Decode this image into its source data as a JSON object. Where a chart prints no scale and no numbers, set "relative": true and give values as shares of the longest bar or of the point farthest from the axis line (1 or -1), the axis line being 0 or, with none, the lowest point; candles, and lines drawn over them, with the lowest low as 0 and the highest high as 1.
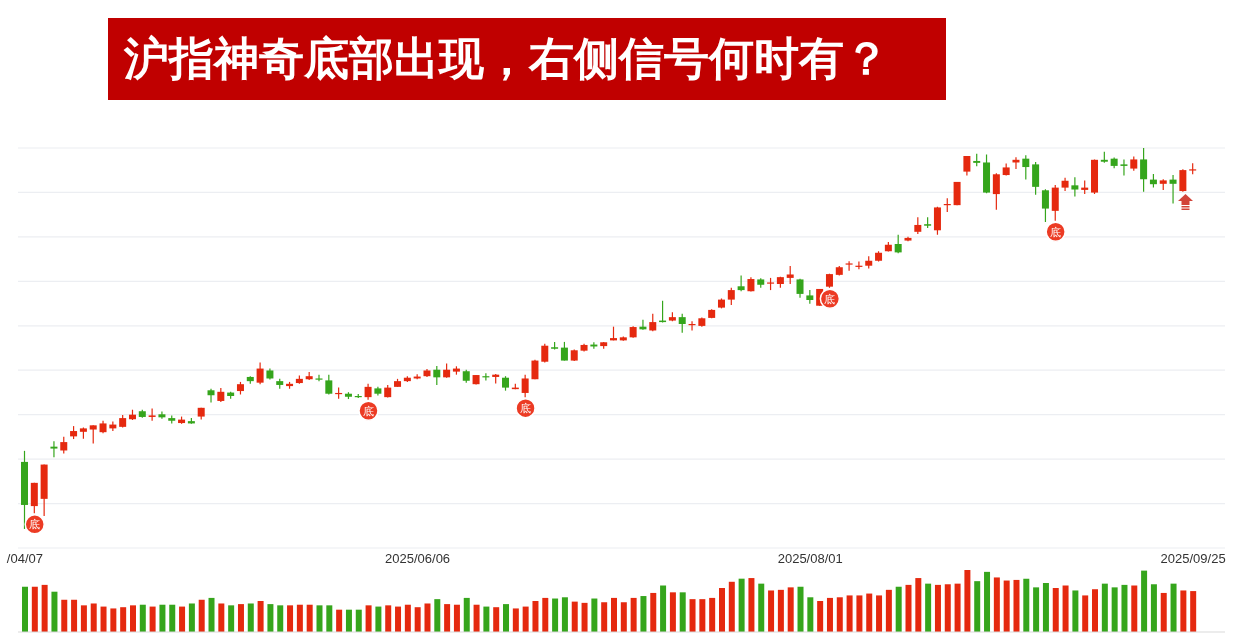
{
  "chart_data": [
    {
      "type": "candlestick",
      "title": "沪指神奇底部出现，右侧信号何时有？",
      "categories": [
        "/04/07",
        null,
        null,
        null,
        null,
        null,
        null,
        null,
        null,
        null,
        null,
        null,
        null,
        null,
        null,
        null,
        null,
        null,
        null,
        null,
        null,
        null,
        null,
        null,
        null,
        null,
        null,
        null,
        null,
        null,
        null,
        null,
        null,
        null,
        null,
        null,
        null,
        null,
        null,
        null,
        "2025/06/06",
        null,
        null,
        null,
        null,
        null,
        null,
        null,
        null,
        null,
        null,
        null,
        null,
        null,
        null,
        null,
        null,
        null,
        null,
        null,
        null,
        null,
        null,
        null,
        null,
        null,
        null,
        null,
        null,
        null,
        null,
        null,
        null,
        null,
        null,
        null,
        null,
        null,
        null,
        null,
        "2025/08/01",
        null,
        null,
        null,
        null,
        null,
        null,
        null,
        null,
        null,
        null,
        null,
        null,
        null,
        null,
        null,
        null,
        null,
        null,
        null,
        null,
        null,
        null,
        null,
        null,
        null,
        null,
        null,
        null,
        null,
        null,
        null,
        null,
        null,
        null,
        null,
        null,
        null,
        null,
        "2025/09/25"
      ],
      "ohlc": [
        [
          0.176,
          0.205,
          0,
          0.063
        ],
        [
          0.06,
          0.121,
          0.041,
          0.121
        ],
        [
          0.079,
          0.169,
          0.034,
          0.169
        ],
        [
          0.216,
          0.23,
          0.188,
          0.211
        ],
        [
          0.206,
          0.242,
          0.198,
          0.228
        ],
        [
          0.243,
          0.27,
          0.236,
          0.257
        ],
        [
          0.255,
          0.266,
          0.237,
          0.264
        ],
        [
          0.261,
          0.272,
          0.224,
          0.272
        ],
        [
          0.254,
          0.284,
          0.251,
          0.277
        ],
        [
          0.264,
          0.282,
          0.257,
          0.274
        ],
        [
          0.268,
          0.299,
          0.266,
          0.291
        ],
        [
          0.288,
          0.313,
          0.286,
          0.3
        ],
        [
          0.309,
          0.313,
          0.292,
          0.294
        ],
        [
          0.294,
          0.316,
          0.284,
          0.298
        ],
        [
          0.301,
          0.308,
          0.289,
          0.293
        ],
        [
          0.291,
          0.298,
          0.277,
          0.284
        ],
        [
          0.278,
          0.295,
          0.276,
          0.287
        ],
        [
          0.283,
          0.291,
          0.276,
          0.277
        ],
        [
          0.295,
          0.318,
          0.287,
          0.318
        ],
        [
          0.364,
          0.368,
          0.332,
          0.351
        ],
        [
          0.336,
          0.37,
          0.333,
          0.36
        ],
        [
          0.358,
          0.36,
          0.342,
          0.349
        ],
        [
          0.362,
          0.386,
          0.353,
          0.38
        ],
        [
          0.399,
          0.401,
          0.381,
          0.388
        ],
        [
          0.384,
          0.437,
          0.38,
          0.421
        ],
        [
          0.416,
          0.421,
          0.392,
          0.395
        ],
        [
          0.388,
          0.394,
          0.368,
          0.378
        ],
        [
          0.375,
          0.386,
          0.368,
          0.381
        ],
        [
          0.383,
          0.403,
          0.381,
          0.394
        ],
        [
          0.393,
          0.412,
          0.391,
          0.401
        ],
        [
          0.395,
          0.405,
          0.388,
          0.392
        ],
        [
          0.39,
          0.405,
          0.353,
          0.355
        ],
        [
          0.354,
          0.371,
          0.342,
          0.357
        ],
        [
          0.355,
          0.359,
          0.341,
          0.347
        ],
        [
          0.349,
          0.354,
          0.344,
          0.346
        ],
        [
          0.346,
          0.381,
          0.339,
          0.373
        ],
        [
          0.369,
          0.373,
          0.35,
          0.355
        ],
        [
          0.346,
          0.378,
          0.345,
          0.371
        ],
        [
          0.373,
          0.394,
          0.373,
          0.388
        ],
        [
          0.388,
          0.401,
          0.386,
          0.397
        ],
        [
          0.395,
          0.406,
          0.393,
          0.4
        ],
        [
          0.401,
          0.42,
          0.399,
          0.416
        ],
        [
          0.418,
          0.428,
          0.378,
          0.398
        ],
        [
          0.398,
          0.434,
          0.397,
          0.418
        ],
        [
          0.413,
          0.427,
          0.405,
          0.421
        ],
        [
          0.414,
          0.418,
          0.384,
          0.389
        ],
        [
          0.38,
          0.404,
          0.379,
          0.404
        ],
        [
          0.401,
          0.409,
          0.39,
          0.399
        ],
        [
          0.399,
          0.407,
          0.382,
          0.405
        ],
        [
          0.397,
          0.401,
          0.363,
          0.371
        ],
        [
          0.367,
          0.381,
          0.367,
          0.371
        ],
        [
          0.357,
          0.405,
          0.346,
          0.395
        ],
        [
          0.393,
          0.444,
          0.393,
          0.442
        ],
        [
          0.439,
          0.486,
          0.437,
          0.481
        ],
        [
          0.477,
          0.491,
          0.471,
          0.473
        ],
        [
          0.476,
          0.491,
          0.442,
          0.442
        ],
        [
          0.442,
          0.471,
          0.441,
          0.469
        ],
        [
          0.468,
          0.486,
          0.466,
          0.483
        ],
        [
          0.484,
          0.49,
          0.473,
          0.479
        ],
        [
          0.48,
          0.491,
          0.473,
          0.49
        ],
        [
          0.495,
          0.531,
          0.495,
          0.501
        ],
        [
          0.495,
          0.505,
          0.494,
          0.503
        ],
        [
          0.503,
          0.532,
          0.502,
          0.53
        ],
        [
          0.531,
          0.549,
          0.523,
          0.524
        ],
        [
          0.521,
          0.565,
          0.519,
          0.543
        ],
        [
          0.547,
          0.599,
          0.542,
          0.543
        ],
        [
          0.547,
          0.569,
          0.545,
          0.556
        ],
        [
          0.556,
          0.565,
          0.515,
          0.538
        ],
        [
          0.536,
          0.545,
          0.521,
          0.538
        ],
        [
          0.533,
          0.555,
          0.531,
          0.553
        ],
        [
          0.554,
          0.577,
          0.553,
          0.575
        ],
        [
          0.581,
          0.605,
          0.579,
          0.602
        ],
        [
          0.602,
          0.633,
          0.588,
          0.627
        ],
        [
          0.637,
          0.665,
          0.624,
          0.627
        ],
        [
          0.624,
          0.661,
          0.623,
          0.656
        ],
        [
          0.655,
          0.658,
          0.633,
          0.641
        ],
        [
          0.644,
          0.659,
          0.627,
          0.647
        ],
        [
          0.643,
          0.662,
          0.633,
          0.661
        ],
        [
          0.659,
          0.69,
          0.643,
          0.668
        ],
        [
          0.655,
          0.657,
          0.607,
          0.617
        ],
        [
          0.613,
          0.627,
          0.591,
          0.601
        ],
        [
          0.586,
          0.63,
          0.586,
          0.63
        ],
        [
          0.636,
          0.67,
          0.633,
          0.669
        ],
        [
          0.667,
          0.69,
          0.665,
          0.687
        ],
        [
          0.694,
          0.703,
          0.678,
          0.697
        ],
        [
          0.688,
          0.702,
          0.682,
          0.691
        ],
        [
          0.691,
          0.716,
          0.684,
          0.704
        ],
        [
          0.704,
          0.729,
          0.702,
          0.725
        ],
        [
          0.729,
          0.753,
          0.728,
          0.746
        ],
        [
          0.748,
          0.772,
          0.724,
          0.726
        ],
        [
          0.757,
          0.767,
          0.755,
          0.764
        ],
        [
          0.78,
          0.818,
          0.774,
          0.798
        ],
        [
          0.8,
          0.818,
          0.79,
          0.796
        ],
        [
          0.784,
          0.846,
          0.772,
          0.844
        ],
        [
          0.85,
          0.868,
          0.832,
          0.853
        ],
        [
          0.85,
          0.911,
          0.85,
          0.911
        ],
        [
          0.938,
          0.979,
          0.928,
          0.979
        ],
        [
          0.966,
          0.985,
          0.952,
          0.961
        ],
        [
          0.962,
          0.983,
          0.881,
          0.883
        ],
        [
          0.879,
          0.934,
          0.838,
          0.931
        ],
        [
          0.929,
          0.959,
          0.928,
          0.949
        ],
        [
          0.962,
          0.976,
          0.945,
          0.969
        ],
        [
          0.972,
          0.981,
          0.917,
          0.95
        ],
        [
          0.957,
          0.963,
          0.877,
          0.898
        ],
        [
          0.889,
          0.892,
          0.806,
          0.841
        ],
        [
          0.835,
          0.903,
          0.809,
          0.896
        ],
        [
          0.896,
          0.922,
          0.887,
          0.914
        ],
        [
          0.902,
          0.923,
          0.873,
          0.891
        ],
        [
          0.89,
          0.915,
          0.879,
          0.896
        ],
        [
          0.883,
          0.97,
          0.879,
          0.969
        ],
        [
          0.969,
          0.99,
          0.961,
          0.964
        ],
        [
          0.972,
          0.975,
          0.947,
          0.953
        ],
        [
          0.957,
          0.97,
          0.928,
          0.953
        ],
        [
          0.946,
          0.978,
          0.94,
          0.97
        ],
        [
          0.97,
          1,
          0.885,
          0.918
        ],
        [
          0.917,
          0.932,
          0.896,
          0.905
        ],
        [
          0.906,
          0.918,
          0.89,
          0.915
        ],
        [
          0.917,
          0.929,
          0.854,
          0.906
        ],
        [
          0.887,
          0.944,
          0.885,
          0.942
        ],
        [
          0.942,
          0.96,
          0.931,
          0.944
        ]
      ],
      "colors": [
        "#35a51c",
        "#e5290f",
        "#e5290f",
        "#35a51c",
        "#e5290f",
        "#e5290f",
        "#e5290f",
        "#e5290f",
        "#e5290f",
        "#e5290f",
        "#e5290f",
        "#e5290f",
        "#35a51c",
        "#e5290f",
        "#35a51c",
        "#35a51c",
        "#e5290f",
        "#35a51c",
        "#e5290f",
        "#35a51c",
        "#e5290f",
        "#35a51c",
        "#e5290f",
        "#35a51c",
        "#e5290f",
        "#35a51c",
        "#35a51c",
        "#e5290f",
        "#e5290f",
        "#e5290f",
        "#35a51c",
        "#35a51c",
        "#e5290f",
        "#35a51c",
        "#35a51c",
        "#e5290f",
        "#35a51c",
        "#e5290f",
        "#e5290f",
        "#e5290f",
        "#e5290f",
        "#e5290f",
        "#35a51c",
        "#e5290f",
        "#e5290f",
        "#35a51c",
        "#e5290f",
        "#35a51c",
        "#e5290f",
        "#35a51c",
        "#e5290f",
        "#e5290f",
        "#e5290f",
        "#e5290f",
        "#35a51c",
        "#35a51c",
        "#e5290f",
        "#e5290f",
        "#35a51c",
        "#e5290f",
        "#e5290f",
        "#e5290f",
        "#e5290f",
        "#35a51c",
        "#e5290f",
        "#35a51c",
        "#e5290f",
        "#35a51c",
        "#e5290f",
        "#e5290f",
        "#e5290f",
        "#e5290f",
        "#e5290f",
        "#35a51c",
        "#e5290f",
        "#35a51c",
        "#e5290f",
        "#e5290f",
        "#e5290f",
        "#35a51c",
        "#35a51c",
        "#e5290f",
        "#e5290f",
        "#e5290f",
        "#e5290f",
        "#e5290f",
        "#e5290f",
        "#e5290f",
        "#e5290f",
        "#35a51c",
        "#e5290f",
        "#e5290f",
        "#35a51c",
        "#e5290f",
        "#e5290f",
        "#e5290f",
        "#e5290f",
        "#35a51c",
        "#35a51c",
        "#e5290f",
        "#e5290f",
        "#e5290f",
        "#35a51c",
        "#35a51c",
        "#35a51c",
        "#e5290f",
        "#e5290f",
        "#35a51c",
        "#e5290f",
        "#e5290f",
        "#35a51c",
        "#35a51c",
        "#35a51c",
        "#e5290f",
        "#35a51c",
        "#35a51c",
        "#e5290f",
        "#35a51c",
        "#e5290f",
        "#e5290f"
      ],
      "relative": true,
      "grid": "y",
      "annotations": [
        {
          "text": "底",
          "y": 0.041
        },
        {
          "text": "底",
          "y": 0.339
        },
        {
          "text": "底",
          "y": 0.346
        },
        {
          "text": "底",
          "y": 0.633
        },
        {
          "text": "底",
          "y": 0.809
        }
      ]
    },
    {
      "type": "bar",
      "categories": [
        null,
        null,
        null,
        null,
        null,
        null,
        null,
        null,
        null,
        null,
        null,
        null,
        null,
        null,
        null,
        null,
        null,
        null,
        null,
        null,
        null,
        null,
        null,
        null,
        null,
        null,
        null,
        null,
        null,
        null,
        null,
        null,
        null,
        null,
        null,
        null,
        null,
        null,
        null,
        null,
        null,
        null,
        null,
        null,
        null,
        null,
        null,
        null,
        null,
        null,
        null,
        null,
        null,
        null,
        null,
        null,
        null,
        null,
        null,
        null,
        null,
        null,
        null,
        null,
        null,
        null,
        null,
        null,
        null,
        null,
        null,
        null,
        null,
        null,
        null,
        null,
        null,
        null,
        null,
        null,
        null,
        null,
        null,
        null,
        null,
        null,
        null,
        null,
        null,
        null,
        null,
        null,
        null,
        null,
        null,
        null,
        null,
        null,
        null,
        null,
        null,
        null,
        null,
        null,
        null,
        null,
        null,
        null,
        null,
        null,
        null,
        null,
        null,
        null,
        null,
        null,
        null,
        null,
        null,
        null
      ],
      "values": [
        0.73,
        0.73,
        0.76,
        0.65,
        0.52,
        0.52,
        0.43,
        0.46,
        0.41,
        0.38,
        0.4,
        0.43,
        0.44,
        0.41,
        0.44,
        0.44,
        0.41,
        0.46,
        0.52,
        0.55,
        0.46,
        0.43,
        0.45,
        0.46,
        0.5,
        0.45,
        0.43,
        0.43,
        0.44,
        0.44,
        0.43,
        0.43,
        0.36,
        0.36,
        0.36,
        0.43,
        0.41,
        0.43,
        0.41,
        0.44,
        0.4,
        0.46,
        0.53,
        0.45,
        0.44,
        0.55,
        0.44,
        0.41,
        0.4,
        0.45,
        0.38,
        0.41,
        0.5,
        0.55,
        0.54,
        0.56,
        0.49,
        0.47,
        0.54,
        0.48,
        0.55,
        0.48,
        0.55,
        0.58,
        0.63,
        0.75,
        0.64,
        0.64,
        0.53,
        0.53,
        0.55,
        0.71,
        0.81,
        0.86,
        0.87,
        0.78,
        0.67,
        0.68,
        0.72,
        0.73,
        0.56,
        0.5,
        0.55,
        0.56,
        0.59,
        0.59,
        0.62,
        0.59,
        0.68,
        0.73,
        0.76,
        0.87,
        0.78,
        0.76,
        0.77,
        0.78,
        1,
        0.82,
        0.97,
        0.88,
        0.83,
        0.84,
        0.86,
        0.72,
        0.79,
        0.71,
        0.75,
        0.67,
        0.59,
        0.69,
        0.78,
        0.72,
        0.76,
        0.75,
        0.99,
        0.77,
        0.63,
        0.78,
        0.67,
        0.66
      ],
      "colors": [
        "#35a51c",
        "#e5290f",
        "#e5290f",
        "#35a51c",
        "#e5290f",
        "#e5290f",
        "#e5290f",
        "#e5290f",
        "#e5290f",
        "#e5290f",
        "#e5290f",
        "#e5290f",
        "#35a51c",
        "#e5290f",
        "#35a51c",
        "#35a51c",
        "#e5290f",
        "#35a51c",
        "#e5290f",
        "#35a51c",
        "#e5290f",
        "#35a51c",
        "#e5290f",
        "#35a51c",
        "#e5290f",
        "#35a51c",
        "#35a51c",
        "#e5290f",
        "#e5290f",
        "#e5290f",
        "#35a51c",
        "#35a51c",
        "#e5290f",
        "#35a51c",
        "#35a51c",
        "#e5290f",
        "#35a51c",
        "#e5290f",
        "#e5290f",
        "#e5290f",
        "#e5290f",
        "#e5290f",
        "#35a51c",
        "#e5290f",
        "#e5290f",
        "#35a51c",
        "#e5290f",
        "#35a51c",
        "#e5290f",
        "#35a51c",
        "#e5290f",
        "#e5290f",
        "#e5290f",
        "#e5290f",
        "#35a51c",
        "#35a51c",
        "#e5290f",
        "#e5290f",
        "#35a51c",
        "#e5290f",
        "#e5290f",
        "#e5290f",
        "#e5290f",
        "#35a51c",
        "#e5290f",
        "#35a51c",
        "#e5290f",
        "#35a51c",
        "#e5290f",
        "#e5290f",
        "#e5290f",
        "#e5290f",
        "#e5290f",
        "#35a51c",
        "#e5290f",
        "#35a51c",
        "#e5290f",
        "#e5290f",
        "#e5290f",
        "#35a51c",
        "#35a51c",
        "#e5290f",
        "#e5290f",
        "#e5290f",
        "#e5290f",
        "#e5290f",
        "#e5290f",
        "#e5290f",
        "#e5290f",
        "#35a51c",
        "#e5290f",
        "#e5290f",
        "#35a51c",
        "#e5290f",
        "#e5290f",
        "#e5290f",
        "#e5290f",
        "#35a51c",
        "#35a51c",
        "#e5290f",
        "#e5290f",
        "#e5290f",
        "#35a51c",
        "#35a51c",
        "#35a51c",
        "#e5290f",
        "#e5290f",
        "#35a51c",
        "#e5290f",
        "#e5290f",
        "#35a51c",
        "#35a51c",
        "#35a51c",
        "#e5290f",
        "#35a51c",
        "#35a51c",
        "#e5290f",
        "#35a51c",
        "#e5290f",
        "#e5290f"
      ],
      "relative": true,
      "tick_labels": false
    }
  ]
}
